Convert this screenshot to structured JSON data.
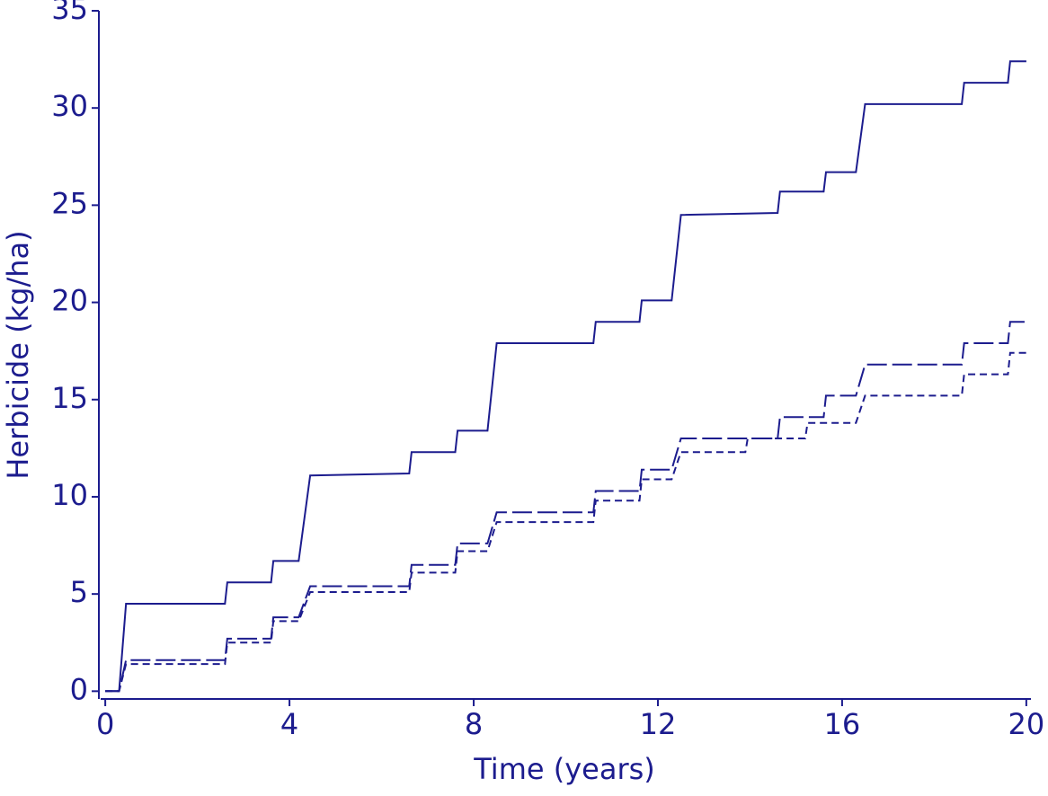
{
  "chart_data": {
    "type": "line",
    "xlabel": "Time (years)",
    "ylabel": "Herbicide (kg/ha)",
    "xlim": [
      -0.1,
      20.1
    ],
    "xticks": [
      0,
      4,
      8,
      12,
      16,
      20
    ],
    "ylim": [
      -0.4,
      35
    ],
    "yticks": [
      0,
      5,
      10,
      15,
      20,
      25,
      30,
      35
    ],
    "grid": false,
    "series": [
      {
        "color": "#1c1c8e",
        "linestyle": "solid",
        "x": [
          0,
          0.3,
          0.45,
          2.6,
          2.65,
          3.6,
          3.65,
          4.2,
          4.45,
          6.6,
          6.65,
          7.6,
          7.65,
          8.3,
          8.5,
          10.6,
          10.65,
          11.6,
          11.65,
          12.3,
          12.5,
          14.6,
          14.65,
          15.6,
          15.65,
          16.3,
          16.5,
          18.6,
          18.65,
          19.6,
          19.65,
          20
        ],
        "values": [
          0,
          0,
          4.5,
          4.5,
          5.6,
          5.6,
          6.7,
          6.7,
          11.1,
          11.2,
          12.3,
          12.3,
          13.4,
          13.4,
          17.9,
          17.9,
          19,
          19,
          20.1,
          20.1,
          24.5,
          24.6,
          25.7,
          25.7,
          26.7,
          26.7,
          30.2,
          30.2,
          31.3,
          31.3,
          32.4,
          32.4
        ]
      },
      {
        "color": "#1c1c8e",
        "linestyle": "longdash",
        "x": [
          0,
          0.3,
          0.45,
          2.6,
          2.65,
          3.6,
          3.65,
          4.2,
          4.45,
          6.6,
          6.65,
          7.6,
          7.65,
          8.3,
          8.5,
          10.6,
          10.65,
          11.6,
          11.65,
          12.3,
          12.5,
          14.6,
          14.65,
          15.6,
          15.65,
          16.3,
          16.5,
          18.6,
          18.65,
          19.6,
          19.65,
          20
        ],
        "values": [
          0,
          0,
          1.6,
          1.6,
          2.7,
          2.7,
          3.8,
          3.8,
          5.4,
          5.4,
          6.5,
          6.5,
          7.6,
          7.6,
          9.2,
          9.2,
          10.3,
          10.3,
          11.4,
          11.4,
          13,
          13,
          14.1,
          14.1,
          15.2,
          15.2,
          16.8,
          16.8,
          17.9,
          17.9,
          19,
          19
        ]
      },
      {
        "color": "#1c1c8e",
        "linestyle": "dash",
        "x": [
          0,
          0.3,
          0.45,
          2.6,
          2.65,
          3.6,
          3.65,
          4.2,
          4.45,
          6.6,
          6.65,
          7.6,
          7.65,
          8.3,
          8.5,
          10.6,
          10.65,
          11.6,
          11.65,
          12.3,
          12.5,
          13.9,
          13.95,
          15.2,
          15.25,
          16.3,
          16.5,
          18.6,
          18.65,
          19.6,
          19.65,
          20
        ],
        "values": [
          0,
          0,
          1.4,
          1.4,
          2.5,
          2.5,
          3.6,
          3.6,
          5.1,
          5.1,
          6.1,
          6.1,
          7.2,
          7.2,
          8.7,
          8.7,
          9.8,
          9.8,
          10.9,
          10.9,
          12.3,
          12.3,
          13,
          13,
          13.8,
          13.8,
          15.2,
          15.2,
          16.3,
          16.3,
          17.4,
          17.4
        ]
      }
    ]
  }
}
